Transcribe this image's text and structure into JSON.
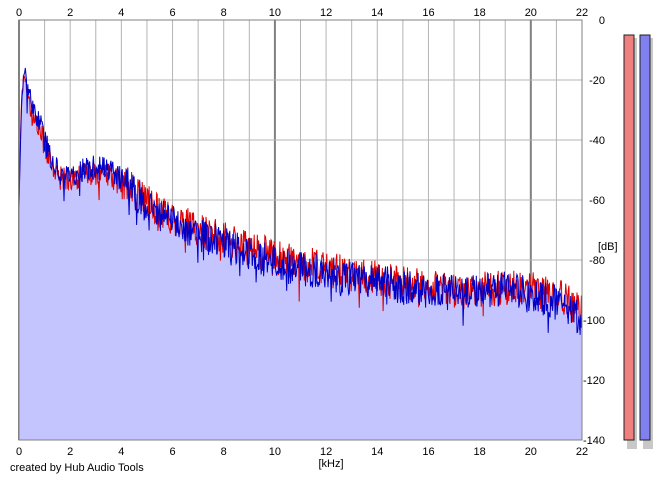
{
  "credit": "created by Hub Audio Tools",
  "colors": {
    "background": "#ffffff",
    "plot_border": "#808080",
    "grid_minor": "#b4b4b4",
    "grid_major": "#808080",
    "fill": "#c4c4ff",
    "left_channel": "#e00000",
    "right_channel": "#0000c8",
    "meter_left": "#f08080",
    "meter_right": "#8080f0"
  },
  "chart_data": {
    "type": "line",
    "title": "",
    "xlabel": "[kHz]",
    "ylabel": "[dB]",
    "xlim": [
      0,
      22
    ],
    "ylim": [
      -140,
      0
    ],
    "x_ticks": [
      "0",
      "2",
      "4",
      "6",
      "8",
      "10",
      "12",
      "14",
      "16",
      "18",
      "20",
      "22"
    ],
    "y_ticks": [
      "0",
      "-20",
      "-40",
      "-60",
      "-80",
      "-100",
      "-120",
      "-140"
    ],
    "grid": true,
    "legend": "none",
    "x": [
      0,
      0.1,
      0.2,
      0.3,
      0.5,
      0.8,
      1.0,
      1.2,
      1.5,
      2.0,
      2.5,
      3.0,
      3.5,
      4.0,
      4.5,
      5.0,
      6.0,
      7.0,
      8.0,
      9.0,
      10.0,
      11.0,
      12.0,
      13.0,
      14.0,
      15.0,
      16.0,
      17.0,
      18.0,
      19.0,
      20.0,
      21.0,
      22.0
    ],
    "series": [
      {
        "values": [
          -60,
          -25,
          -18,
          -22,
          -32,
          -36,
          -42,
          -47,
          -52,
          -53,
          -52,
          -51,
          -52,
          -54,
          -57,
          -61,
          -66,
          -70,
          -73,
          -76,
          -79,
          -81,
          -83,
          -85,
          -86,
          -88,
          -89,
          -89,
          -90,
          -89,
          -90,
          -91,
          -98
        ]
      },
      {
        "values": [
          -62,
          -28,
          -16,
          -20,
          -30,
          -33,
          -40,
          -45,
          -50,
          -52,
          -50,
          -49,
          -50,
          -53,
          -57,
          -62,
          -67,
          -71,
          -75,
          -78,
          -81,
          -83,
          -84,
          -86,
          -87,
          -89,
          -90,
          -91,
          -91,
          -89,
          -92,
          -94,
          -100
        ]
      }
    ],
    "level_meters": [
      {
        "level_db": -5
      },
      {
        "level_db": -5
      }
    ]
  }
}
